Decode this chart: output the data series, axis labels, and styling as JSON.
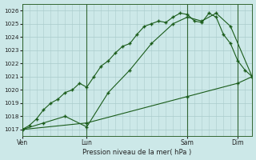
{
  "background_color": "#cce8e8",
  "grid_color": "#aacccc",
  "line_color": "#1a5c1a",
  "title": "Pression niveau de la mer( hPa )",
  "ylim": [
    1016.5,
    1026.5
  ],
  "yticks": [
    1017,
    1018,
    1019,
    1020,
    1021,
    1022,
    1023,
    1024,
    1025,
    1026
  ],
  "xtick_labels": [
    "Ven",
    "Lun",
    "Sam",
    "Dim"
  ],
  "xtick_positions": [
    0,
    9,
    23,
    30
  ],
  "vlines": [
    0,
    9,
    23,
    30
  ],
  "series1_x": [
    0,
    1,
    2,
    3,
    4,
    5,
    6,
    7,
    8,
    9,
    10,
    11,
    12,
    13,
    14,
    15,
    16,
    17,
    18,
    19,
    20,
    21,
    22,
    23,
    24,
    25,
    26,
    27,
    28,
    29,
    30,
    31,
    32
  ],
  "series1_y": [
    1017.0,
    1017.3,
    1017.8,
    1018.5,
    1019.0,
    1019.3,
    1019.8,
    1020.0,
    1020.5,
    1020.2,
    1021.0,
    1021.8,
    1022.2,
    1022.8,
    1023.3,
    1023.5,
    1024.2,
    1024.8,
    1025.0,
    1025.2,
    1025.1,
    1025.5,
    1025.8,
    1025.7,
    1025.2,
    1025.1,
    1025.8,
    1025.5,
    1024.2,
    1023.5,
    1022.2,
    1021.5,
    1021.0
  ],
  "series2_x": [
    0,
    3,
    6,
    9,
    12,
    15,
    18,
    21,
    23,
    25,
    27,
    29,
    32
  ],
  "series2_y": [
    1017.0,
    1017.5,
    1018.0,
    1017.2,
    1019.8,
    1021.5,
    1023.5,
    1025.0,
    1025.5,
    1025.2,
    1025.8,
    1024.8,
    1021.0
  ],
  "series3_x": [
    0,
    9,
    23,
    30,
    32
  ],
  "series3_y": [
    1017.0,
    1017.5,
    1019.5,
    1020.5,
    1021.0
  ],
  "xlim": [
    0,
    32
  ]
}
